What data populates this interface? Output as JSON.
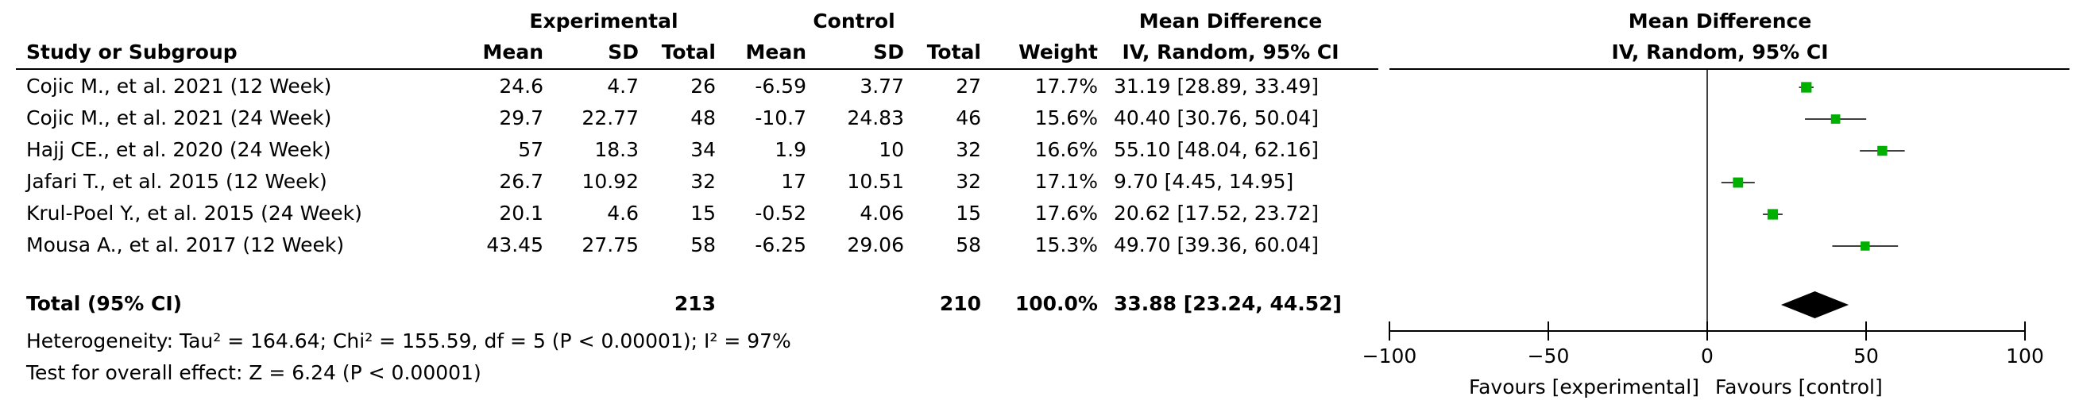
{
  "chart_data": {
    "type": "forest",
    "group_headers": {
      "experimental": "Experimental",
      "control": "Control",
      "md_table": "Mean Difference",
      "md_plot": "Mean Difference"
    },
    "column_headers": [
      "Study or Subgroup",
      "Mean",
      "SD",
      "Total",
      "Mean",
      "SD",
      "Total",
      "Weight",
      "IV, Random, 95% CI",
      "IV, Random, 95% CI"
    ],
    "studies": [
      {
        "name": "Cojic M., et al. 2021 (12 Week)",
        "exp_mean": 24.6,
        "exp_sd": 4.7,
        "exp_total": 26,
        "ctrl_mean": -6.59,
        "ctrl_sd": 3.77,
        "ctrl_total": 27,
        "weight": 17.7,
        "weight_label": "17.7%",
        "md": 31.19,
        "ci": [
          28.89,
          33.49
        ],
        "md_label": "31.19 [28.89, 33.49]"
      },
      {
        "name": "Cojic M., et al. 2021 (24 Week)",
        "exp_mean": 29.7,
        "exp_sd": 22.77,
        "exp_total": 48,
        "ctrl_mean": -10.7,
        "ctrl_sd": 24.83,
        "ctrl_total": 46,
        "weight": 15.6,
        "weight_label": "15.6%",
        "md": 40.4,
        "ci": [
          30.76,
          50.04
        ],
        "md_label": "40.40 [30.76, 50.04]"
      },
      {
        "name": "Hajj CE., et al. 2020 (24 Week)",
        "exp_mean": 57,
        "exp_sd": 18.3,
        "exp_total": 34,
        "ctrl_mean": 1.9,
        "ctrl_sd": 10,
        "ctrl_total": 32,
        "weight": 16.6,
        "weight_label": "16.6%",
        "md": 55.1,
        "ci": [
          48.04,
          62.16
        ],
        "md_label": "55.10 [48.04, 62.16]"
      },
      {
        "name": "Jafari T., et al. 2015 (12 Week)",
        "exp_mean": 26.7,
        "exp_sd": 10.92,
        "exp_total": 32,
        "ctrl_mean": 17,
        "ctrl_sd": 10.51,
        "ctrl_total": 32,
        "weight": 17.1,
        "weight_label": "17.1%",
        "md": 9.7,
        "ci": [
          4.45,
          14.95
        ],
        "md_label": "9.70 [4.45, 14.95]"
      },
      {
        "name": "Krul-Poel Y., et al. 2015 (24 Week)",
        "exp_mean": 20.1,
        "exp_sd": 4.6,
        "exp_total": 15,
        "ctrl_mean": -0.52,
        "ctrl_sd": 4.06,
        "ctrl_total": 15,
        "weight": 17.6,
        "weight_label": "17.6%",
        "md": 20.62,
        "ci": [
          17.52,
          23.72
        ],
        "md_label": "20.62 [17.52, 23.72]"
      },
      {
        "name": "Mousa A., et al. 2017 (12 Week)",
        "exp_mean": 43.45,
        "exp_sd": 27.75,
        "exp_total": 58,
        "ctrl_mean": -6.25,
        "ctrl_sd": 29.06,
        "ctrl_total": 58,
        "weight": 15.3,
        "weight_label": "15.3%",
        "md": 49.7,
        "ci": [
          39.36,
          60.04
        ],
        "md_label": "49.70 [39.36, 60.04]"
      }
    ],
    "total": {
      "name": "Total (95% CI)",
      "exp_total": 213,
      "ctrl_total": 210,
      "weight": 100,
      "weight_label": "100.0%",
      "md": 33.88,
      "ci": [
        23.24,
        44.52
      ],
      "md_label": "33.88 [23.24, 44.52]"
    },
    "heterogeneity": "Heterogeneity: Tau² = 164.64; Chi² = 155.59, df = 5 (P < 0.00001); I² = 97%",
    "overall_effect": "Test for overall effect: Z = 6.24 (P < 0.00001)",
    "xlim": [
      -100,
      100
    ],
    "xticks": [
      {
        "value": -100,
        "label": "−100"
      },
      {
        "value": -50,
        "label": "−50"
      },
      0,
      50,
      100
    ],
    "favours_left": "Favours [experimental]",
    "favours_right": "Favours [control]",
    "colors": {
      "study": "#00b000",
      "total": "#000000"
    }
  }
}
